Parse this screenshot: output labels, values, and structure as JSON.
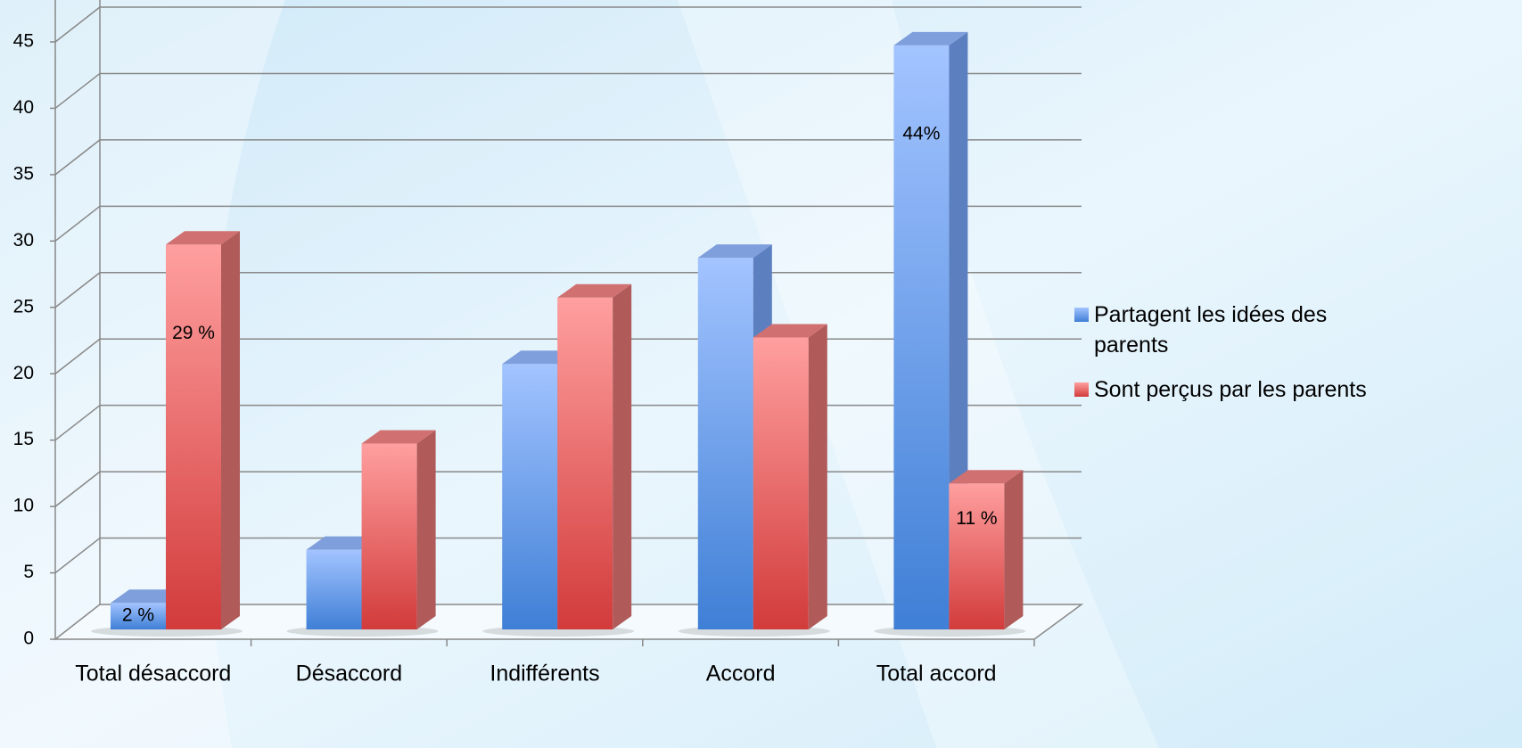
{
  "chart_data": {
    "type": "bar3d",
    "categories": [
      "Total désaccord",
      "Désaccord",
      "Indifférents",
      "Accord",
      "Total accord"
    ],
    "series": [
      {
        "name": "Partagent les idées des parents",
        "color": "#5b8fe0",
        "values": [
          2,
          6,
          20,
          28,
          44
        ],
        "value_labels": [
          "2 %",
          null,
          null,
          null,
          "44%"
        ]
      },
      {
        "name": "Sont perçus par les parents",
        "color": "#e05a5a",
        "values": [
          29,
          14,
          25,
          22,
          11
        ],
        "value_labels": [
          "29 %",
          null,
          null,
          null,
          "11 %"
        ]
      }
    ],
    "ylim": [
      0,
      45
    ],
    "yticks": [
      0,
      5,
      10,
      15,
      20,
      25,
      30,
      35,
      40,
      45
    ],
    "grid": true,
    "legend": "right"
  }
}
